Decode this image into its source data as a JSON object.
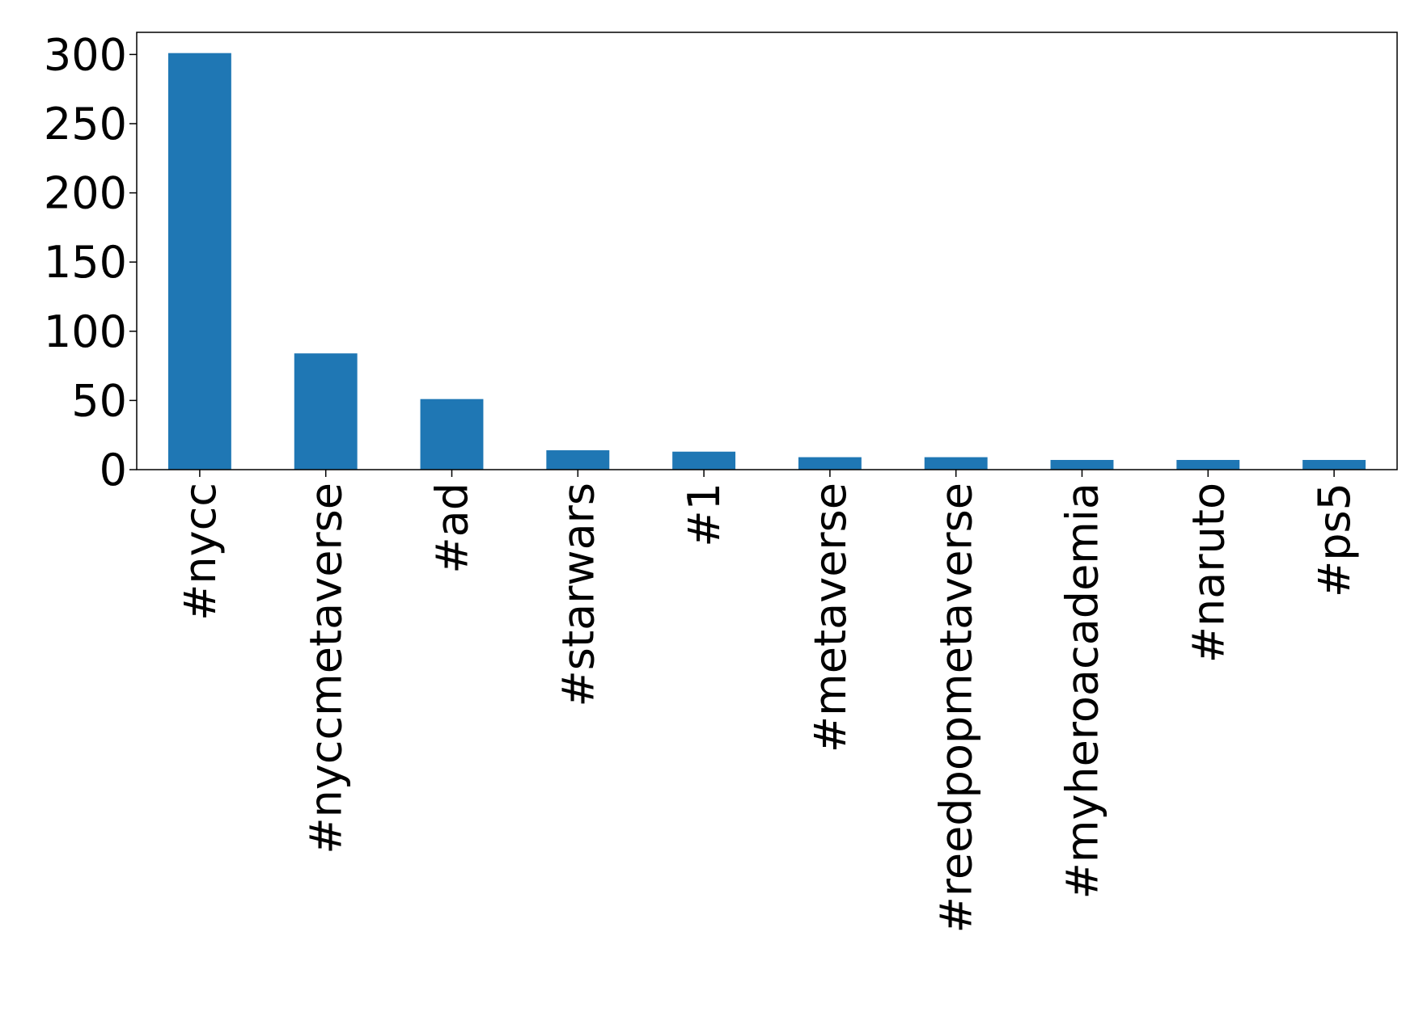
{
  "chart_data": {
    "type": "bar",
    "categories": [
      "#nycc",
      "#nyccmetaverse",
      "#ad",
      "#starwars",
      "#1",
      "#metaverse",
      "#reedpopmetaverse",
      "#myheroacademia",
      "#naruto",
      "#ps5"
    ],
    "values": [
      301,
      84,
      51,
      14,
      13,
      9,
      9,
      7,
      7,
      7
    ],
    "color": "#1f77b4",
    "ylim": [
      0,
      316
    ],
    "yticks": [
      0,
      50,
      100,
      150,
      200,
      250,
      300
    ],
    "grid": false
  }
}
